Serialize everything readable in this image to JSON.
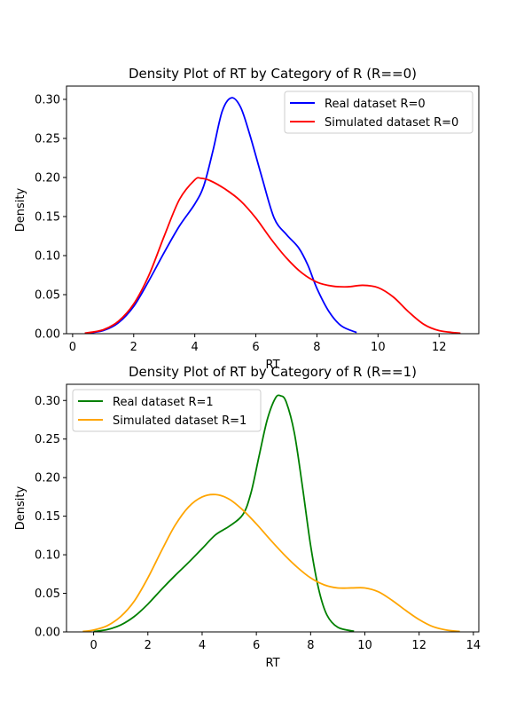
{
  "chart_data": [
    {
      "type": "line",
      "title": "Density Plot of RT by Category of R (R==0)",
      "xlabel": "RT",
      "ylabel": "Density",
      "xlim": [
        -0.2,
        13.3
      ],
      "ylim": [
        0,
        0.317
      ],
      "xticks": [
        0,
        2,
        4,
        6,
        8,
        10,
        12
      ],
      "yticks": [
        0.0,
        0.05,
        0.1,
        0.15,
        0.2,
        0.25,
        0.3
      ],
      "ytick_labels": [
        "0.00",
        "0.05",
        "0.10",
        "0.15",
        "0.20",
        "0.25",
        "0.30"
      ],
      "legend_position": "upper-right",
      "series": [
        {
          "name": "Real dataset R=0",
          "color": "#0000ff",
          "points": [
            [
              0.4,
              0.0005
            ],
            [
              1.0,
              0.004
            ],
            [
              1.5,
              0.014
            ],
            [
              2.0,
              0.035
            ],
            [
              2.5,
              0.068
            ],
            [
              3.0,
              0.104
            ],
            [
              3.5,
              0.138
            ],
            [
              4.0,
              0.166
            ],
            [
              4.3,
              0.19
            ],
            [
              4.6,
              0.235
            ],
            [
              4.9,
              0.285
            ],
            [
              5.2,
              0.302
            ],
            [
              5.5,
              0.29
            ],
            [
              5.8,
              0.255
            ],
            [
              6.2,
              0.2
            ],
            [
              6.6,
              0.148
            ],
            [
              7.0,
              0.127
            ],
            [
              7.4,
              0.11
            ],
            [
              7.7,
              0.088
            ],
            [
              8.0,
              0.058
            ],
            [
              8.4,
              0.028
            ],
            [
              8.8,
              0.01
            ],
            [
              9.3,
              0.0015
            ]
          ]
        },
        {
          "name": "Simulated dataset R=0",
          "color": "#ff0000",
          "points": [
            [
              0.4,
              0.0007
            ],
            [
              1.0,
              0.005
            ],
            [
              1.5,
              0.016
            ],
            [
              2.0,
              0.038
            ],
            [
              2.5,
              0.075
            ],
            [
              3.0,
              0.125
            ],
            [
              3.5,
              0.172
            ],
            [
              4.0,
              0.197
            ],
            [
              4.2,
              0.199
            ],
            [
              4.5,
              0.196
            ],
            [
              5.0,
              0.185
            ],
            [
              5.5,
              0.17
            ],
            [
              6.0,
              0.148
            ],
            [
              6.5,
              0.121
            ],
            [
              7.0,
              0.097
            ],
            [
              7.5,
              0.078
            ],
            [
              8.0,
              0.066
            ],
            [
              8.5,
              0.061
            ],
            [
              9.0,
              0.06
            ],
            [
              9.5,
              0.062
            ],
            [
              10.0,
              0.059
            ],
            [
              10.5,
              0.047
            ],
            [
              11.0,
              0.028
            ],
            [
              11.5,
              0.012
            ],
            [
              12.0,
              0.004
            ],
            [
              12.7,
              0.0006
            ]
          ]
        }
      ]
    },
    {
      "type": "line",
      "title": "Density Plot of RT by Category of R (R==1)",
      "xlabel": "RT",
      "ylabel": "Density",
      "xlim": [
        -1.0,
        14.2
      ],
      "ylim": [
        0,
        0.321
      ],
      "xticks": [
        0,
        2,
        4,
        6,
        8,
        10,
        12,
        14
      ],
      "yticks": [
        0.0,
        0.05,
        0.1,
        0.15,
        0.2,
        0.25,
        0.3
      ],
      "ytick_labels": [
        "0.00",
        "0.05",
        "0.10",
        "0.15",
        "0.20",
        "0.25",
        "0.30"
      ],
      "legend_position": "upper-left",
      "series": [
        {
          "name": "Real dataset R=1",
          "color": "#008000",
          "points": [
            [
              0.0,
              0.0005
            ],
            [
              0.5,
              0.003
            ],
            [
              1.0,
              0.009
            ],
            [
              1.5,
              0.02
            ],
            [
              2.0,
              0.036
            ],
            [
              2.5,
              0.055
            ],
            [
              3.0,
              0.073
            ],
            [
              3.5,
              0.09
            ],
            [
              4.0,
              0.108
            ],
            [
              4.5,
              0.126
            ],
            [
              5.0,
              0.137
            ],
            [
              5.5,
              0.152
            ],
            [
              5.8,
              0.18
            ],
            [
              6.1,
              0.228
            ],
            [
              6.4,
              0.275
            ],
            [
              6.7,
              0.303
            ],
            [
              6.9,
              0.306
            ],
            [
              7.1,
              0.298
            ],
            [
              7.4,
              0.258
            ],
            [
              7.7,
              0.188
            ],
            [
              8.0,
              0.112
            ],
            [
              8.3,
              0.055
            ],
            [
              8.6,
              0.022
            ],
            [
              9.0,
              0.006
            ],
            [
              9.6,
              0.0008
            ]
          ]
        },
        {
          "name": "Simulated dataset R=1",
          "color": "#ffa500",
          "points": [
            [
              -0.4,
              0.0006
            ],
            [
              0.0,
              0.0025
            ],
            [
              0.5,
              0.008
            ],
            [
              1.0,
              0.02
            ],
            [
              1.5,
              0.04
            ],
            [
              2.0,
              0.07
            ],
            [
              2.5,
              0.105
            ],
            [
              3.0,
              0.138
            ],
            [
              3.5,
              0.162
            ],
            [
              4.0,
              0.175
            ],
            [
              4.5,
              0.178
            ],
            [
              5.0,
              0.172
            ],
            [
              5.5,
              0.158
            ],
            [
              6.0,
              0.14
            ],
            [
              6.5,
              0.12
            ],
            [
              7.0,
              0.101
            ],
            [
              7.5,
              0.084
            ],
            [
              8.0,
              0.07
            ],
            [
              8.5,
              0.061
            ],
            [
              9.0,
              0.057
            ],
            [
              9.5,
              0.057
            ],
            [
              10.0,
              0.057
            ],
            [
              10.5,
              0.052
            ],
            [
              11.0,
              0.041
            ],
            [
              11.5,
              0.028
            ],
            [
              12.0,
              0.016
            ],
            [
              12.5,
              0.007
            ],
            [
              13.0,
              0.0025
            ],
            [
              13.5,
              0.0005
            ]
          ]
        }
      ]
    }
  ]
}
